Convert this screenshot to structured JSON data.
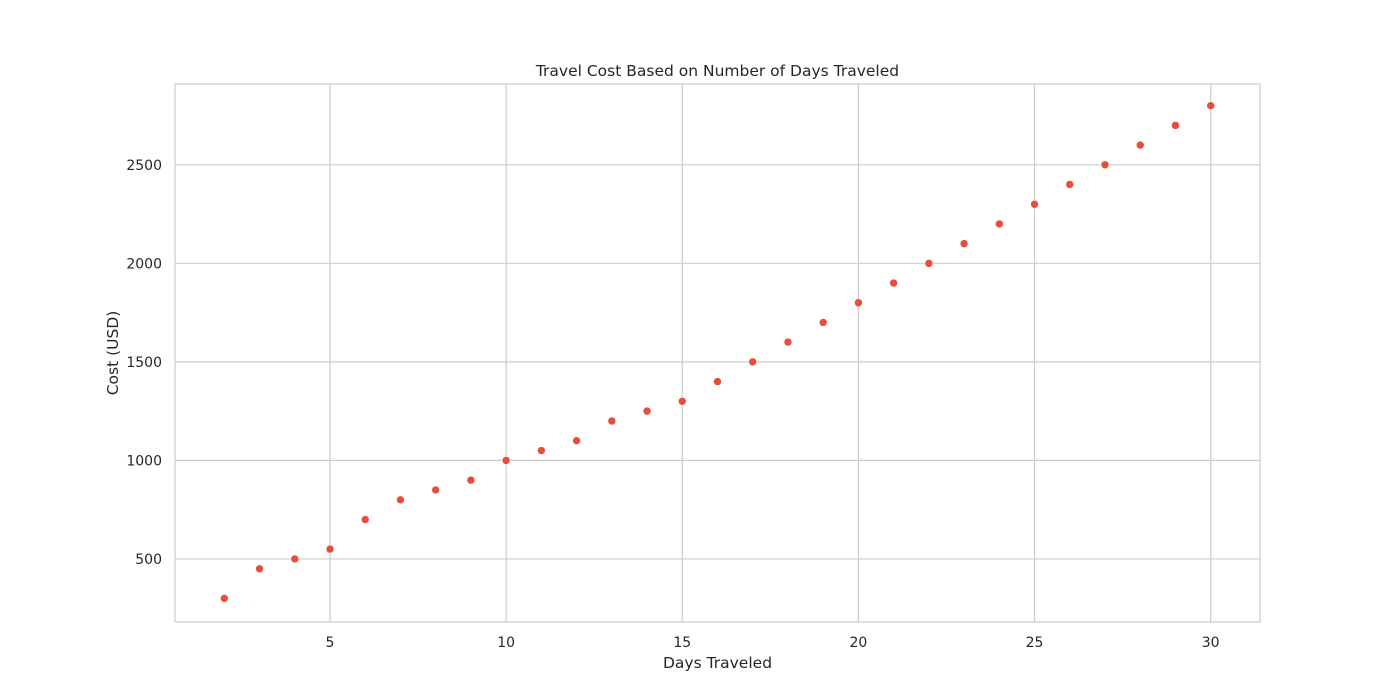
{
  "chart_data": {
    "type": "scatter",
    "title": "Travel Cost Based on Number of Days Traveled",
    "xlabel": "Days Traveled",
    "ylabel": "Cost (USD)",
    "xlim": [
      0.6,
      31.4
    ],
    "ylim": [
      180,
      2910
    ],
    "xticks": [
      5,
      10,
      15,
      20,
      25,
      30
    ],
    "yticks": [
      500,
      1000,
      1500,
      2000,
      2500
    ],
    "grid": true,
    "legend": "none",
    "colors": {
      "point": "#e74c3c",
      "grid": "#cccccc",
      "frame": "#cccccc",
      "text": "#262626"
    },
    "x": [
      2,
      3,
      4,
      5,
      6,
      7,
      8,
      9,
      10,
      11,
      12,
      13,
      14,
      15,
      16,
      17,
      18,
      19,
      20,
      21,
      22,
      23,
      24,
      25,
      26,
      27,
      28,
      29,
      30
    ],
    "y": [
      300,
      450,
      500,
      550,
      700,
      800,
      850,
      900,
      1000,
      1050,
      1100,
      1200,
      1250,
      1300,
      1400,
      1500,
      1600,
      1700,
      1800,
      1900,
      2000,
      2100,
      2200,
      2300,
      2400,
      2500,
      2600,
      2700,
      2800
    ]
  }
}
